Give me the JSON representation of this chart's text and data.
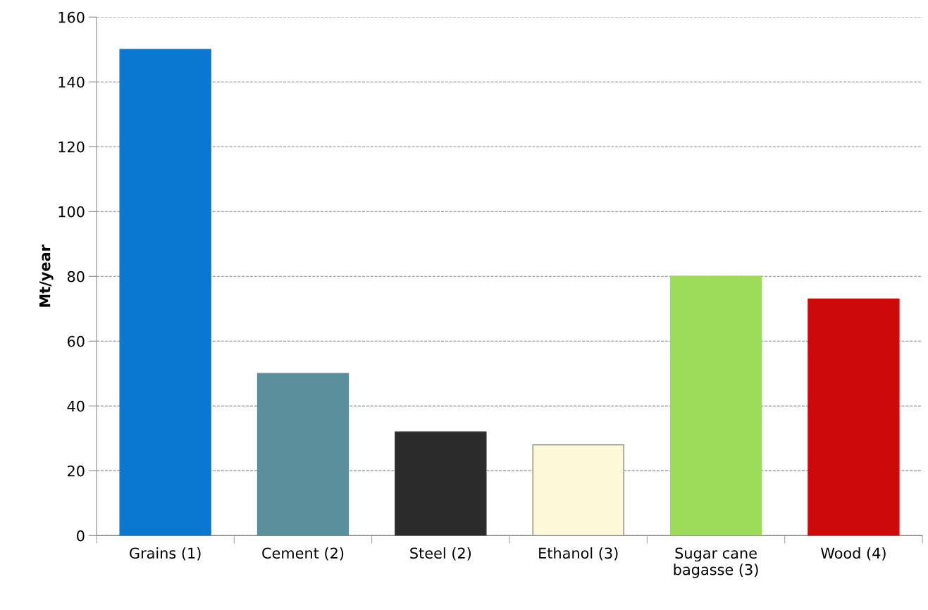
{
  "chart_data": {
    "type": "bar",
    "ylabel": "Mt/year",
    "categories": [
      "Grains (1)",
      "Cement (2)",
      "Steel (2)",
      "Ethanol (3)",
      "Sugar cane\nbagasse (3)",
      "Wood (4)"
    ],
    "values": [
      150,
      50,
      32,
      28,
      80,
      73
    ],
    "colors": [
      "#0a77d0",
      "#5b8f9c",
      "#2b2b2b",
      "#fdf8d8",
      "#9cdc5a",
      "#cc0a0a"
    ],
    "ylim": [
      0,
      160
    ],
    "yticks": [
      0,
      20,
      40,
      60,
      80,
      100,
      120,
      140,
      160
    ],
    "grid": "y"
  }
}
